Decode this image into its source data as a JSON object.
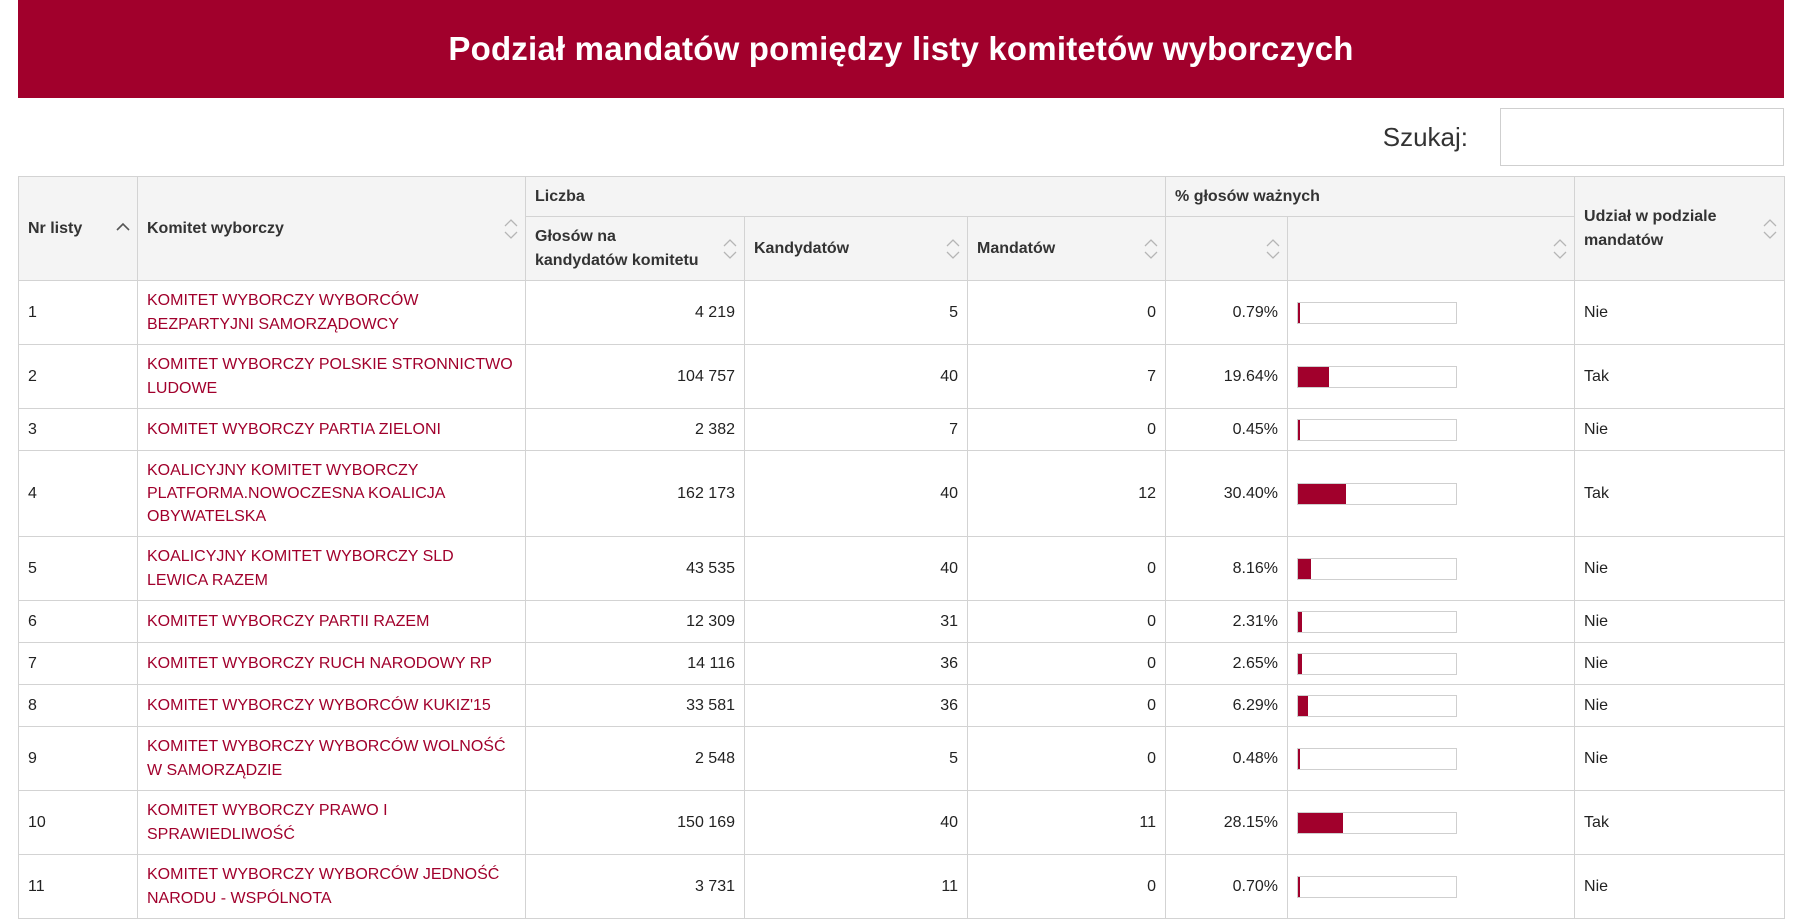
{
  "title": "Podział mandatów pomiędzy listy komitetów wyborczych",
  "search": {
    "label": "Szukaj:",
    "value": "",
    "placeholder": ""
  },
  "columns": {
    "nr": "Nr listy",
    "committee": "Komitet wyborczy",
    "group_count": "Liczba",
    "votes": "Głosów na kandydatów komitetu",
    "candidates": "Kandydatów",
    "mandates": "Mandatów",
    "group_percent": "% głosów ważnych",
    "participation": "Udział w podziale mandatów"
  },
  "sort": {
    "active_column": "nr",
    "direction": "asc"
  },
  "colors": {
    "accent": "#a1002c",
    "border": "#d3d3d3",
    "header_bg": "#f4f4f4"
  },
  "rows": [
    {
      "nr": "1",
      "committee": "KOMITET WYBORCZY WYBORCÓW BEZPARTYJNI SAMORZĄDOWCY",
      "votes": "4 219",
      "candidates": "5",
      "mandates": "0",
      "percent": "0.79%",
      "percent_value": 0.79,
      "participation": "Nie"
    },
    {
      "nr": "2",
      "committee": "KOMITET WYBORCZY POLSKIE STRONNICTWO LUDOWE",
      "votes": "104 757",
      "candidates": "40",
      "mandates": "7",
      "percent": "19.64%",
      "percent_value": 19.64,
      "participation": "Tak"
    },
    {
      "nr": "3",
      "committee": "KOMITET WYBORCZY PARTIA ZIELONI",
      "votes": "2 382",
      "candidates": "7",
      "mandates": "0",
      "percent": "0.45%",
      "percent_value": 0.45,
      "participation": "Nie"
    },
    {
      "nr": "4",
      "committee": "KOALICYJNY KOMITET WYBORCZY PLATFORMA.NOWOCZESNA KOALICJA OBYWATELSKA",
      "votes": "162 173",
      "candidates": "40",
      "mandates": "12",
      "percent": "30.40%",
      "percent_value": 30.4,
      "participation": "Tak"
    },
    {
      "nr": "5",
      "committee": "KOALICYJNY KOMITET WYBORCZY SLD LEWICA RAZEM",
      "votes": "43 535",
      "candidates": "40",
      "mandates": "0",
      "percent": "8.16%",
      "percent_value": 8.16,
      "participation": "Nie"
    },
    {
      "nr": "6",
      "committee": "KOMITET WYBORCZY PARTII RAZEM",
      "votes": "12 309",
      "candidates": "31",
      "mandates": "0",
      "percent": "2.31%",
      "percent_value": 2.31,
      "participation": "Nie"
    },
    {
      "nr": "7",
      "committee": "KOMITET WYBORCZY RUCH NARODOWY RP",
      "votes": "14 116",
      "candidates": "36",
      "mandates": "0",
      "percent": "2.65%",
      "percent_value": 2.65,
      "participation": "Nie"
    },
    {
      "nr": "8",
      "committee": "KOMITET WYBORCZY WYBORCÓW KUKIZ'15",
      "votes": "33 581",
      "candidates": "36",
      "mandates": "0",
      "percent": "6.29%",
      "percent_value": 6.29,
      "participation": "Nie"
    },
    {
      "nr": "9",
      "committee": "KOMITET WYBORCZY WYBORCÓW WOLNOŚĆ W SAMORZĄDZIE",
      "votes": "2 548",
      "candidates": "5",
      "mandates": "0",
      "percent": "0.48%",
      "percent_value": 0.48,
      "participation": "Nie"
    },
    {
      "nr": "10",
      "committee": "KOMITET WYBORCZY PRAWO I SPRAWIEDLIWOŚĆ",
      "votes": "150 169",
      "candidates": "40",
      "mandates": "11",
      "percent": "28.15%",
      "percent_value": 28.15,
      "participation": "Tak"
    },
    {
      "nr": "11",
      "committee": "KOMITET WYBORCZY WYBORCÓW JEDNOŚĆ NARODU - WSPÓLNOTA",
      "votes": "3 731",
      "candidates": "11",
      "mandates": "0",
      "percent": "0.70%",
      "percent_value": 0.7,
      "participation": "Nie"
    }
  ]
}
